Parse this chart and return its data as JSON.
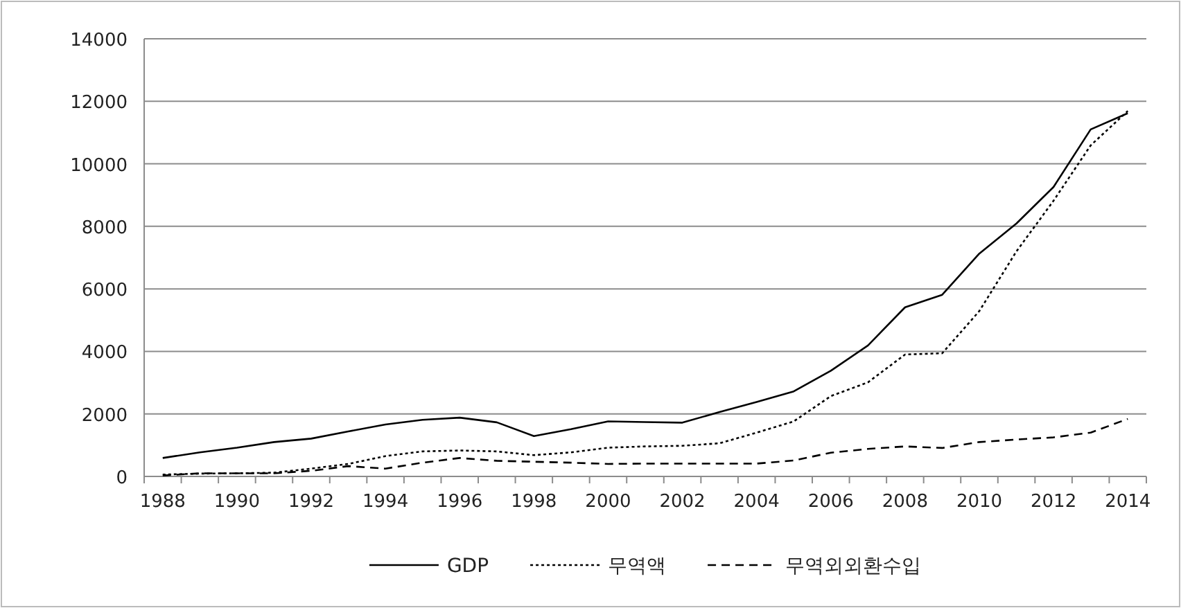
{
  "chart_data": {
    "type": "line",
    "categories": [
      "1988",
      null,
      "1990",
      null,
      "1992",
      null,
      "1994",
      null,
      "1996",
      null,
      "1998",
      null,
      "2000",
      null,
      "2002",
      null,
      "2004",
      null,
      "2006",
      null,
      "2008",
      null,
      "2010",
      null,
      "2012",
      null,
      "2014"
    ],
    "series": [
      {
        "name": "GDP",
        "color": "#000000",
        "line_style": "solid",
        "values": [
          590,
          770,
          920,
          1100,
          1210,
          1440,
          1660,
          1810,
          1880,
          1730,
          1290,
          1510,
          1760,
          1740,
          1720,
          2060,
          2380,
          2720,
          3380,
          4190,
          5410,
          5810,
          7130,
          8090,
          9260,
          11100,
          11620
        ]
      },
      {
        "name": "무역액",
        "color": "#000000",
        "line_style": "dotted",
        "values": [
          60,
          90,
          100,
          120,
          250,
          400,
          650,
          800,
          830,
          800,
          680,
          770,
          920,
          960,
          980,
          1060,
          1400,
          1760,
          2570,
          3010,
          3900,
          3940,
          5290,
          7200,
          8820,
          10590,
          11690
        ]
      },
      {
        "name": "무역외외환수입",
        "color": "#000000",
        "line_style": "dashed",
        "values": [
          30,
          100,
          100,
          100,
          180,
          330,
          250,
          440,
          590,
          500,
          470,
          440,
          400,
          410,
          410,
          410,
          410,
          510,
          760,
          880,
          960,
          910,
          1100,
          1180,
          1250,
          1400,
          1840
        ]
      }
    ],
    "ylim": [
      0,
      14000
    ],
    "yticks": [
      0,
      2000,
      4000,
      6000,
      8000,
      10000,
      12000,
      14000
    ],
    "grid": "y",
    "legend": "bottom",
    "marker": "none"
  }
}
